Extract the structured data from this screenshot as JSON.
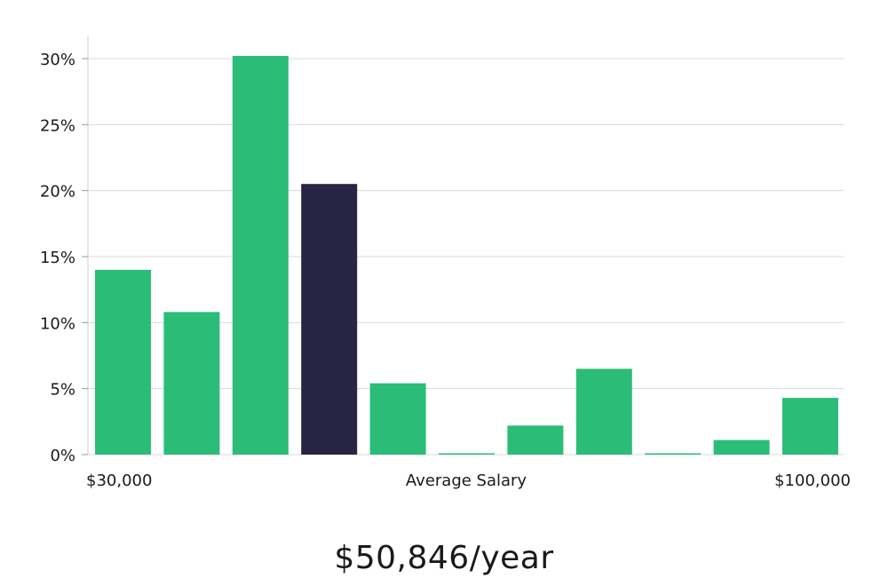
{
  "chart_data": {
    "type": "bar",
    "title": "",
    "xlabel": "Average Salary",
    "ylabel": "",
    "x_min_label": "$30,000",
    "x_max_label": "$100,000",
    "ylim": [
      0,
      0.32
    ],
    "yticks": [
      0,
      0.05,
      0.1,
      0.15,
      0.2,
      0.25,
      0.3
    ],
    "ytick_labels": [
      "0%",
      "5%",
      "10%",
      "15%",
      "20%",
      "25%",
      "30%"
    ],
    "grid": true,
    "values": [
      0.14,
      0.108,
      0.302,
      0.205,
      0.054,
      0.001,
      0.022,
      0.065,
      0.001,
      0.011,
      0.043
    ],
    "highlight_index": 3,
    "colors": {
      "bar": "#2bbd77",
      "highlight": "#282443",
      "grid": "#d9d9d9",
      "axis": "#cccccc"
    }
  },
  "summary": {
    "average_salary": "$50,846/year"
  }
}
